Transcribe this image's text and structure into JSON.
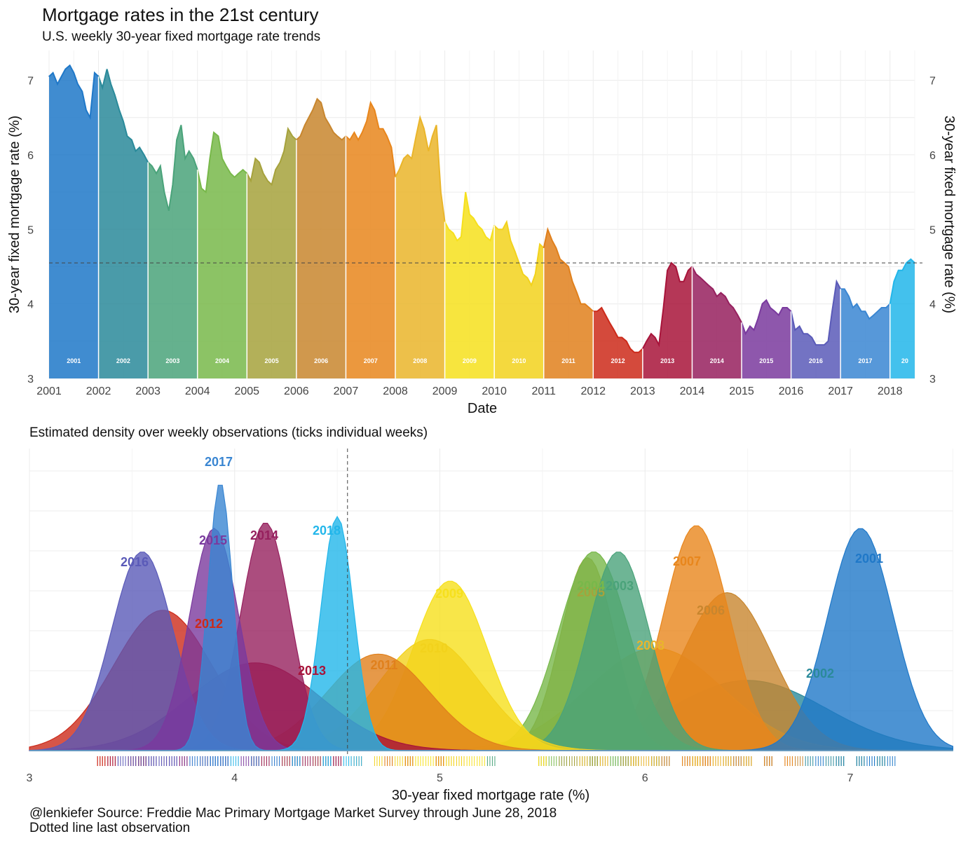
{
  "title": "Mortgage rates in the 21st century",
  "subtitle": "U.S. weekly 30-year fixed mortgage rate trends",
  "subtitle_density": "Estimated density over weekly observations (ticks individual weeks)",
  "caption_line1": "@lenkiefer Source: Freddie Mac Primary Mortgage Market Survey through June 28, 2018",
  "caption_line2": "Dotted line last observation",
  "colors": {
    "2001": "#1f78c8",
    "2002": "#2a8a9a",
    "2003": "#4aa37a",
    "2004": "#78b84a",
    "2005": "#a6a23c",
    "2006": "#c8862e",
    "2007": "#e8861c",
    "2008": "#eab52a",
    "2009": "#f6e01c",
    "2010": "#f2d21c",
    "2011": "#e0801c",
    "2012": "#cc2a1a",
    "2013": "#a8143a",
    "2014": "#96205e",
    "2015": "#7a3a9e",
    "2016": "#5a5ab8",
    "2017": "#3a86d2",
    "2018": "#22b6ea"
  },
  "chart_data": [
    {
      "type": "area",
      "title": "Mortgage rates in the 21st century",
      "subtitle": "U.S. weekly 30-year fixed mortgage rate trends",
      "xlabel": "Date",
      "ylabel": "30-year fixed mortgage rate (%)",
      "ylabel_right": "30-year fixed mortgage rate (%)",
      "x_ticks": [
        "2001",
        "2002",
        "2003",
        "2004",
        "2005",
        "2006",
        "2007",
        "2008",
        "2009",
        "2010",
        "2011",
        "2012",
        "2013",
        "2014",
        "2015",
        "2016",
        "2017",
        "2018"
      ],
      "y_ticks": [
        "3",
        "4",
        "5",
        "6",
        "7"
      ],
      "xlim": [
        2001.0,
        2018.5
      ],
      "ylim": [
        3,
        7.4
      ],
      "reference_line": 4.55,
      "year_labels": [
        "2001",
        "2002",
        "2003",
        "2004",
        "2005",
        "2006",
        "2007",
        "2008",
        "2009",
        "2010",
        "2011",
        "2012",
        "2013",
        "2014",
        "2015",
        "2016",
        "2017",
        "20"
      ],
      "x": [
        2001.0,
        2001.08,
        2001.17,
        2001.25,
        2001.33,
        2001.42,
        2001.5,
        2001.58,
        2001.67,
        2001.75,
        2001.83,
        2001.92,
        2002.0,
        2002.08,
        2002.17,
        2002.25,
        2002.33,
        2002.42,
        2002.5,
        2002.58,
        2002.67,
        2002.75,
        2002.83,
        2002.92,
        2003.0,
        2003.08,
        2003.17,
        2003.25,
        2003.33,
        2003.42,
        2003.5,
        2003.58,
        2003.67,
        2003.75,
        2003.83,
        2003.92,
        2004.0,
        2004.08,
        2004.17,
        2004.25,
        2004.33,
        2004.42,
        2004.5,
        2004.58,
        2004.67,
        2004.75,
        2004.83,
        2004.92,
        2005.0,
        2005.08,
        2005.17,
        2005.25,
        2005.33,
        2005.42,
        2005.5,
        2005.58,
        2005.67,
        2005.75,
        2005.83,
        2005.92,
        2006.0,
        2006.08,
        2006.17,
        2006.25,
        2006.33,
        2006.42,
        2006.5,
        2006.58,
        2006.67,
        2006.75,
        2006.83,
        2006.92,
        2007.0,
        2007.08,
        2007.17,
        2007.25,
        2007.33,
        2007.42,
        2007.5,
        2007.58,
        2007.67,
        2007.75,
        2007.83,
        2007.92,
        2008.0,
        2008.08,
        2008.17,
        2008.25,
        2008.33,
        2008.42,
        2008.5,
        2008.58,
        2008.67,
        2008.75,
        2008.83,
        2008.92,
        2009.0,
        2009.08,
        2009.17,
        2009.25,
        2009.33,
        2009.42,
        2009.5,
        2009.58,
        2009.67,
        2009.75,
        2009.83,
        2009.92,
        2010.0,
        2010.08,
        2010.17,
        2010.25,
        2010.33,
        2010.42,
        2010.5,
        2010.58,
        2010.67,
        2010.75,
        2010.83,
        2010.92,
        2011.0,
        2011.08,
        2011.17,
        2011.25,
        2011.33,
        2011.42,
        2011.5,
        2011.58,
        2011.67,
        2011.75,
        2011.83,
        2011.92,
        2012.0,
        2012.08,
        2012.17,
        2012.25,
        2012.33,
        2012.42,
        2012.5,
        2012.58,
        2012.67,
        2012.75,
        2012.83,
        2012.92,
        2013.0,
        2013.08,
        2013.17,
        2013.25,
        2013.33,
        2013.42,
        2013.5,
        2013.58,
        2013.67,
        2013.75,
        2013.83,
        2013.92,
        2014.0,
        2014.08,
        2014.17,
        2014.25,
        2014.33,
        2014.42,
        2014.5,
        2014.58,
        2014.67,
        2014.75,
        2014.83,
        2014.92,
        2015.0,
        2015.08,
        2015.17,
        2015.25,
        2015.33,
        2015.42,
        2015.5,
        2015.58,
        2015.67,
        2015.75,
        2015.83,
        2015.92,
        2016.0,
        2016.08,
        2016.17,
        2016.25,
        2016.33,
        2016.42,
        2016.5,
        2016.58,
        2016.67,
        2016.75,
        2016.83,
        2016.92,
        2017.0,
        2017.08,
        2017.17,
        2017.25,
        2017.33,
        2017.42,
        2017.5,
        2017.58,
        2017.67,
        2017.75,
        2017.83,
        2017.92,
        2018.0,
        2018.08,
        2018.17,
        2018.25,
        2018.33,
        2018.42,
        2018.5
      ],
      "y": [
        7.05,
        7.1,
        6.95,
        7.05,
        7.15,
        7.2,
        7.1,
        6.95,
        6.85,
        6.6,
        6.5,
        7.1,
        7.05,
        6.9,
        7.15,
        6.95,
        6.8,
        6.6,
        6.45,
        6.25,
        6.2,
        6.05,
        6.1,
        6.0,
        5.9,
        5.85,
        5.75,
        5.85,
        5.5,
        5.25,
        5.6,
        6.2,
        6.4,
        5.95,
        6.05,
        5.95,
        5.8,
        5.55,
        5.5,
        5.95,
        6.3,
        6.25,
        5.95,
        5.85,
        5.75,
        5.7,
        5.75,
        5.8,
        5.75,
        5.65,
        5.95,
        5.9,
        5.75,
        5.65,
        5.6,
        5.8,
        5.9,
        6.05,
        6.35,
        6.25,
        6.2,
        6.25,
        6.4,
        6.5,
        6.6,
        6.75,
        6.7,
        6.5,
        6.4,
        6.3,
        6.25,
        6.2,
        6.25,
        6.2,
        6.3,
        6.2,
        6.3,
        6.45,
        6.7,
        6.6,
        6.35,
        6.35,
        6.25,
        6.1,
        5.7,
        5.8,
        5.95,
        6.0,
        5.95,
        6.25,
        6.5,
        6.35,
        6.05,
        6.25,
        6.4,
        5.5,
        5.1,
        5.0,
        4.95,
        4.85,
        4.9,
        5.5,
        5.2,
        5.15,
        5.05,
        5.0,
        4.9,
        4.85,
        5.05,
        5.0,
        5.0,
        5.1,
        4.85,
        4.7,
        4.55,
        4.4,
        4.35,
        4.25,
        4.4,
        4.8,
        4.75,
        5.0,
        4.85,
        4.75,
        4.6,
        4.55,
        4.5,
        4.3,
        4.15,
        4.0,
        4.0,
        3.95,
        3.9,
        3.9,
        3.95,
        3.85,
        3.75,
        3.65,
        3.55,
        3.55,
        3.5,
        3.4,
        3.35,
        3.35,
        3.4,
        3.5,
        3.6,
        3.55,
        3.45,
        3.95,
        4.45,
        4.55,
        4.5,
        4.3,
        4.3,
        4.45,
        4.5,
        4.4,
        4.35,
        4.3,
        4.25,
        4.2,
        4.1,
        4.15,
        4.1,
        4.0,
        3.95,
        3.85,
        3.75,
        3.6,
        3.7,
        3.65,
        3.8,
        4.0,
        4.05,
        3.95,
        3.9,
        3.85,
        3.95,
        3.95,
        3.9,
        3.65,
        3.7,
        3.6,
        3.6,
        3.55,
        3.45,
        3.45,
        3.45,
        3.5,
        3.9,
        4.3,
        4.2,
        4.2,
        4.1,
        3.95,
        4.0,
        3.9,
        3.9,
        3.8,
        3.85,
        3.9,
        3.95,
        3.95,
        4.0,
        4.3,
        4.45,
        4.45,
        4.55,
        4.6,
        4.55
      ]
    },
    {
      "type": "density",
      "title": "Estimated density over weekly observations (ticks individual weeks)",
      "xlabel": "30-year fixed mortgage rate (%)",
      "x_ticks": [
        "3",
        "4",
        "5",
        "6",
        "7"
      ],
      "xlim": [
        3,
        7.5
      ],
      "reference_line": 4.55,
      "series": [
        {
          "name": "2002",
          "label": "2002",
          "mu": 6.5,
          "sd": 0.38,
          "peak": 0.24
        },
        {
          "name": "2008",
          "label": "2008",
          "mu": 6.05,
          "sd": 0.33,
          "peak": 0.35
        },
        {
          "name": "2006",
          "label": "2006",
          "mu": 6.4,
          "sd": 0.22,
          "peak": 0.54
        },
        {
          "name": "2007",
          "label": "2007",
          "mu": 6.25,
          "sd": 0.16,
          "peak": 0.77
        },
        {
          "name": "2005",
          "label": "2005",
          "mu": 5.72,
          "sd": 0.13,
          "peak": 0.66
        },
        {
          "name": "2004",
          "label": "2004",
          "mu": 5.75,
          "sd": 0.17,
          "peak": 0.68
        },
        {
          "name": "2003",
          "label": "2003",
          "mu": 5.87,
          "sd": 0.15,
          "peak": 0.68
        },
        {
          "name": "2001",
          "label": "2001",
          "mu": 7.05,
          "sd": 0.16,
          "peak": 0.76
        },
        {
          "name": "2009",
          "label": "2009",
          "mu": 5.05,
          "sd": 0.18,
          "peak": 0.58
        },
        {
          "name": "2010",
          "label": "2010",
          "mu": 4.95,
          "sd": 0.25,
          "peak": 0.38
        },
        {
          "name": "2011",
          "label": "2011",
          "mu": 4.7,
          "sd": 0.25,
          "peak": 0.33
        },
        {
          "name": "2012",
          "label": "2012",
          "mu": 3.65,
          "sd": 0.24,
          "peak": 0.48
        },
        {
          "name": "2013",
          "label": "2013",
          "mu": 4.1,
          "sd": 0.32,
          "peak": 0.3
        },
        {
          "name": "2014",
          "label": "2014",
          "mu": 4.15,
          "sd": 0.12,
          "peak": 0.78
        },
        {
          "name": "2016",
          "label": "2016",
          "mu": 3.55,
          "sd": 0.15,
          "peak": 0.68
        },
        {
          "name": "2015",
          "label": "2015",
          "mu": 3.9,
          "sd": 0.12,
          "peak": 0.76
        },
        {
          "name": "2017",
          "label": "2017",
          "mu": 3.93,
          "sd": 0.06,
          "peak": 0.92
        },
        {
          "name": "2018",
          "label": "2018",
          "mu": 4.5,
          "sd": 0.08,
          "peak": 0.8
        }
      ]
    }
  ]
}
